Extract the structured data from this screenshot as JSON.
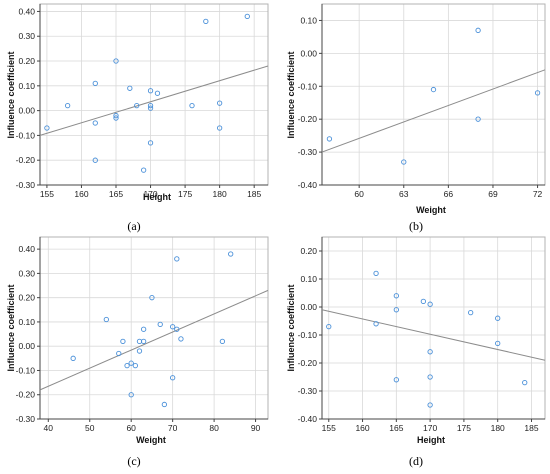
{
  "chart_data": [
    {
      "type": "scatter",
      "label": "(a)",
      "xlabel": "Height",
      "ylabel": "Influence coefficient",
      "xlim": [
        154,
        187
      ],
      "ylim": [
        -0.3,
        0.43
      ],
      "xticks": [
        155,
        160,
        165,
        170,
        175,
        180,
        185
      ],
      "yticks": [
        -0.3,
        -0.2,
        -0.1,
        0.0,
        0.1,
        0.2,
        0.3,
        0.4
      ],
      "grid": true,
      "x": [
        155,
        158,
        162,
        162,
        162,
        165,
        165,
        165,
        167,
        168,
        169,
        170,
        170,
        170,
        170,
        171,
        176,
        178,
        180,
        180,
        184
      ],
      "y": [
        -0.07,
        0.02,
        0.11,
        -0.05,
        -0.2,
        0.2,
        -0.02,
        -0.03,
        0.09,
        0.02,
        -0.24,
        0.08,
        0.02,
        -0.13,
        0.01,
        0.07,
        0.02,
        0.36,
        0.03,
        -0.07,
        0.38
      ],
      "fit_line": {
        "x": [
          154,
          187
        ],
        "y": [
          -0.1,
          0.18
        ]
      }
    },
    {
      "type": "scatter",
      "label": "(b)",
      "xlabel": "Weight",
      "ylabel": "Influence coefficient",
      "xlim": [
        57.5,
        72.5
      ],
      "ylim": [
        -0.4,
        0.15
      ],
      "xticks": [
        60,
        63,
        66,
        69,
        72
      ],
      "yticks": [
        -0.4,
        -0.3,
        -0.2,
        -0.1,
        0.0,
        0.1
      ],
      "grid": true,
      "x": [
        58,
        63,
        65,
        68,
        68,
        72
      ],
      "y": [
        -0.26,
        -0.33,
        -0.11,
        0.07,
        -0.2,
        -0.12
      ],
      "fit_line": {
        "x": [
          57.5,
          72.5
        ],
        "y": [
          -0.3,
          -0.05
        ]
      }
    },
    {
      "type": "scatter",
      "label": "(c)",
      "xlabel": "Weight",
      "ylabel": "Influence coefficient",
      "xlim": [
        38,
        93
      ],
      "ylim": [
        -0.3,
        0.45
      ],
      "xticks": [
        40,
        50,
        60,
        70,
        80,
        90
      ],
      "yticks": [
        -0.3,
        -0.2,
        -0.1,
        0.0,
        0.1,
        0.2,
        0.3,
        0.4
      ],
      "grid": true,
      "x": [
        46,
        54,
        57,
        58,
        59,
        60,
        60,
        61,
        62,
        62,
        63,
        63,
        65,
        67,
        68,
        70,
        70,
        71,
        71,
        72,
        82,
        84
      ],
      "y": [
        -0.05,
        0.11,
        -0.03,
        0.02,
        -0.08,
        -0.2,
        -0.07,
        -0.08,
        0.02,
        -0.02,
        0.07,
        0.02,
        0.2,
        0.09,
        -0.24,
        0.08,
        -0.13,
        0.07,
        0.36,
        0.03,
        0.02,
        0.38
      ],
      "fit_line": {
        "x": [
          38,
          93
        ],
        "y": [
          -0.18,
          0.23
        ]
      }
    },
    {
      "type": "scatter",
      "label": "(d)",
      "xlabel": "Height",
      "ylabel": "Influence coefficient",
      "xlim": [
        154,
        187
      ],
      "ylim": [
        -0.4,
        0.25
      ],
      "xticks": [
        155,
        160,
        165,
        170,
        175,
        180,
        185
      ],
      "yticks": [
        -0.4,
        -0.3,
        -0.2,
        -0.1,
        0.0,
        0.1,
        0.2
      ],
      "grid": true,
      "x": [
        155,
        162,
        162,
        165,
        165,
        165,
        169,
        170,
        170,
        170,
        170,
        176,
        180,
        180,
        184
      ],
      "y": [
        -0.07,
        0.12,
        -0.06,
        0.04,
        -0.01,
        -0.26,
        0.02,
        0.01,
        -0.16,
        -0.25,
        -0.35,
        -0.02,
        -0.04,
        -0.13,
        -0.27
      ],
      "fit_line": {
        "x": [
          154,
          187
        ],
        "y": [
          -0.01,
          -0.19
        ]
      }
    }
  ]
}
